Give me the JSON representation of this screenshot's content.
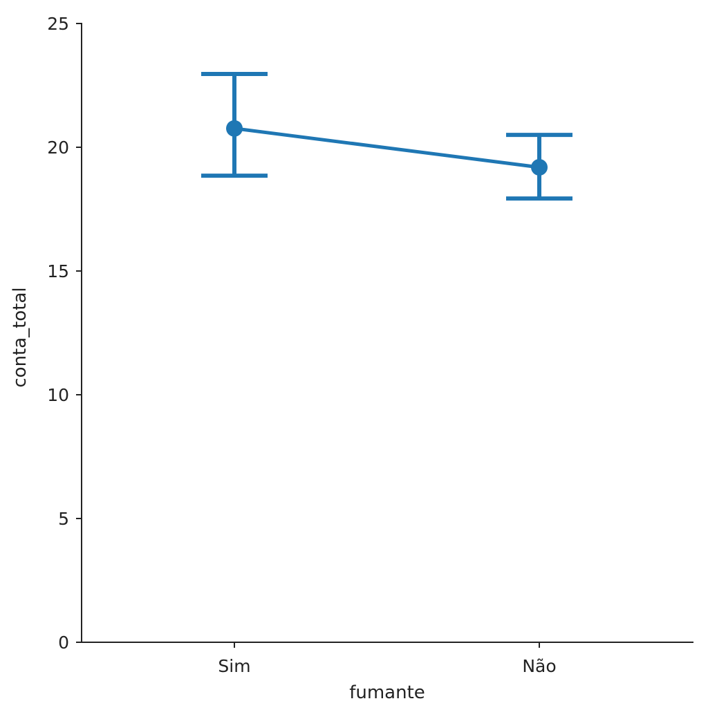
{
  "chart_data": {
    "type": "line",
    "subtype": "pointplot_with_error_bars",
    "title": "",
    "xlabel": "fumante",
    "ylabel": "conta_total",
    "categories": [
      "Sim",
      "Não"
    ],
    "series": [
      {
        "name": "conta_total",
        "color": "#1f77b4",
        "values": [
          20.76,
          19.19
        ],
        "ci_lower": [
          18.85,
          17.93
        ],
        "ci_upper": [
          22.96,
          20.5
        ]
      }
    ],
    "ylim": [
      0,
      25
    ],
    "yticks": [
      0,
      5,
      10,
      15,
      20,
      25
    ],
    "grid": false,
    "legend": null
  }
}
